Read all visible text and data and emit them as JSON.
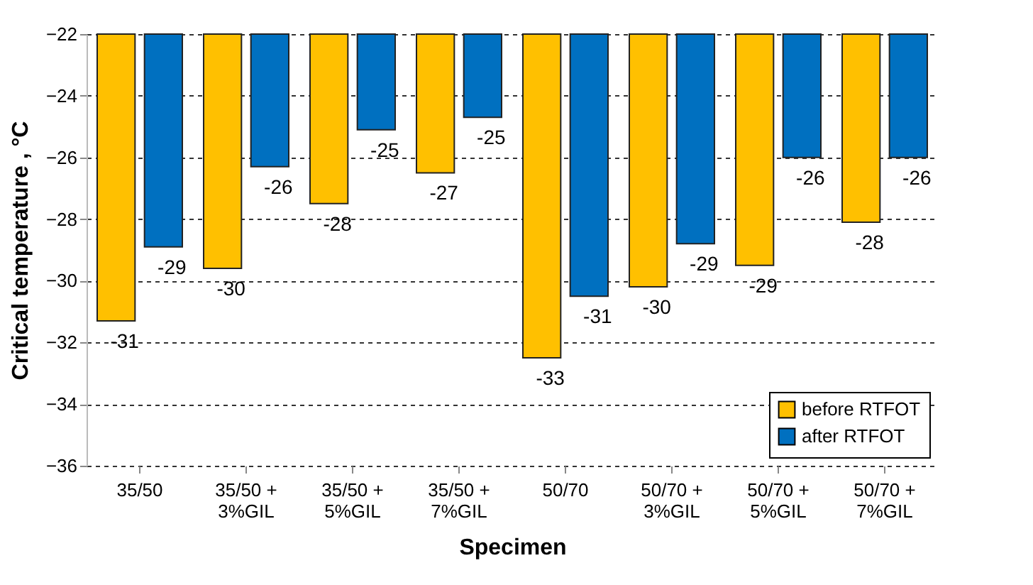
{
  "chart_data": {
    "type": "bar",
    "xlabel": "Specimen",
    "ylabel": "Critical temperature , °C",
    "categories": [
      "35/50",
      "35/50 + 3%GIL",
      "35/50 + 5%GIL",
      "35/50 + 7%GIL",
      "50/70",
      "50/70 + 3%GIL",
      "50/70 + 5%GIL",
      "50/70 + 7%GIL"
    ],
    "series": [
      {
        "name": "before RTFOT",
        "color": "#ffc000",
        "values": [
          -31.3,
          -29.6,
          -27.5,
          -26.5,
          -32.5,
          -30.2,
          -29.5,
          -28.1
        ],
        "value_labels": [
          "-31",
          "-30",
          "-28",
          "-27",
          "-33",
          "-30",
          "-29",
          "-28"
        ]
      },
      {
        "name": "after RTFOT",
        "color": "#0070c0",
        "values": [
          -28.9,
          -26.3,
          -25.1,
          -24.7,
          -30.5,
          -28.8,
          -26.0,
          -26.0
        ],
        "value_labels": [
          "-29",
          "-26",
          "-25",
          "-25",
          "-31",
          "-29",
          "-26",
          "-26"
        ]
      }
    ],
    "ylim": [
      -36,
      -22
    ],
    "yticks": [
      -36,
      -34,
      -32,
      -30,
      -28,
      -26,
      -24,
      -22
    ],
    "grid": "y",
    "legend": "bottom right"
  }
}
